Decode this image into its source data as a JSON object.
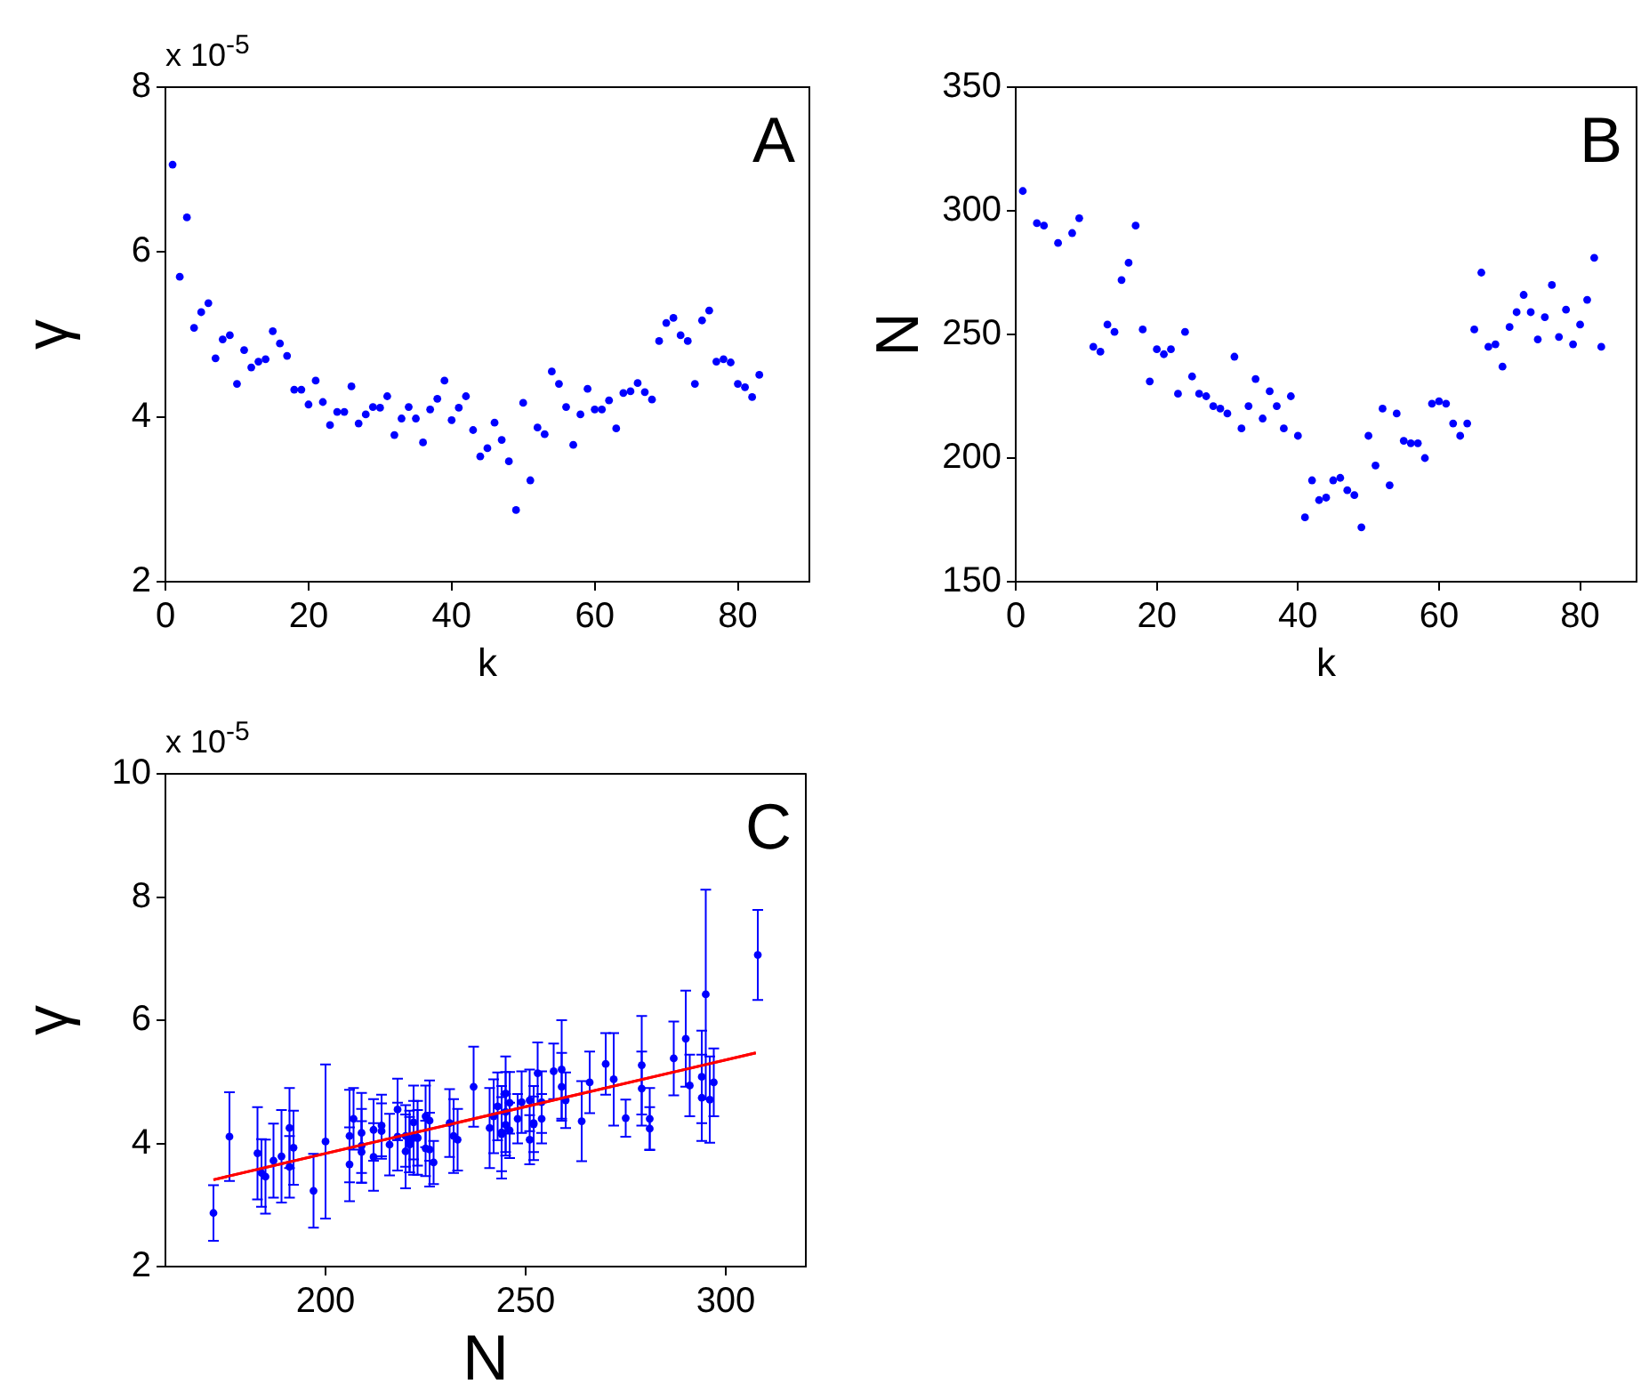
{
  "chart_data": [
    {
      "type": "scatter",
      "xlabel": "k",
      "ylabel": "γ",
      "annotations": [
        "A",
        "x 10$^{-5}$"
      ],
      "marker": "circle",
      "color": "#0000ff",
      "x": [
        1,
        2,
        3,
        4,
        5,
        6,
        7,
        8,
        9,
        10,
        11,
        12,
        13,
        14,
        15,
        16,
        17,
        18,
        19,
        20,
        21,
        22,
        23,
        24,
        25,
        26,
        27,
        28,
        29,
        30,
        31,
        32,
        33,
        34,
        35,
        36,
        37,
        38,
        39,
        40,
        41,
        42,
        43,
        44,
        45,
        46,
        47,
        48,
        49,
        50,
        51,
        52,
        53,
        54,
        55,
        56,
        57,
        58,
        59,
        60,
        61,
        62,
        63,
        64,
        65,
        66,
        67,
        68,
        69,
        70,
        71,
        72,
        73,
        74,
        75,
        76,
        77,
        78,
        79,
        80,
        81,
        82,
        83
      ],
      "values": [
        7.06,
        5.7,
        6.42,
        5.08,
        5.27,
        5.38,
        4.71,
        4.94,
        4.99,
        4.4,
        4.81,
        4.6,
        4.67,
        4.7,
        5.04,
        4.89,
        4.74,
        4.33,
        4.33,
        4.15,
        4.44,
        4.18,
        3.9,
        4.06,
        4.06,
        4.37,
        3.92,
        4.03,
        4.12,
        4.11,
        4.25,
        3.78,
        3.98,
        4.12,
        3.98,
        3.69,
        4.09,
        4.22,
        4.44,
        3.96,
        4.11,
        4.25,
        3.84,
        3.52,
        3.62,
        3.93,
        3.72,
        3.46,
        2.87,
        4.17,
        3.23,
        3.87,
        3.79,
        4.55,
        4.4,
        4.12,
        3.66,
        4.03,
        4.34,
        4.09,
        4.09,
        4.2,
        3.86,
        4.29,
        4.31,
        4.41,
        4.3,
        4.21,
        4.92,
        5.14,
        5.2,
        4.99,
        4.92,
        4.4,
        5.17,
        5.29,
        4.67,
        4.7,
        4.66,
        4.4,
        4.36,
        4.24,
        4.51
      ],
      "xlim": [
        0,
        90
      ],
      "xticks": [
        0,
        20,
        40,
        60,
        80
      ],
      "ylim": [
        2,
        8
      ],
      "yticks": [
        2,
        4,
        6,
        8
      ]
    },
    {
      "type": "scatter",
      "xlabel": "k",
      "ylabel": "N",
      "annotations": [
        "B"
      ],
      "marker": "circle",
      "color": "#0000ff",
      "x": [
        1,
        2,
        3,
        4,
        5,
        6,
        7,
        8,
        9,
        10,
        11,
        12,
        13,
        14,
        15,
        16,
        17,
        18,
        19,
        20,
        21,
        22,
        23,
        24,
        25,
        26,
        27,
        28,
        29,
        30,
        31,
        32,
        33,
        34,
        35,
        36,
        37,
        38,
        39,
        40,
        41,
        42,
        43,
        44,
        45,
        46,
        47,
        48,
        49,
        50,
        51,
        52,
        53,
        54,
        55,
        56,
        57,
        58,
        59,
        60,
        61,
        62,
        63,
        64,
        65,
        66,
        67,
        68,
        69,
        70,
        71,
        72,
        73,
        74,
        75,
        76,
        77,
        78,
        79,
        80,
        81,
        82,
        83
      ],
      "values": [
        308,
        null,
        295,
        294,
        null,
        287,
        null,
        291,
        297,
        null,
        245,
        243,
        254,
        251,
        272,
        279,
        294,
        252,
        231,
        244,
        242,
        244,
        226,
        251,
        233,
        226,
        225,
        221,
        220,
        218,
        241,
        212,
        221,
        232,
        216,
        227,
        221,
        212,
        225,
        209,
        176,
        191,
        183,
        184,
        191,
        192,
        187,
        185,
        172,
        209,
        197,
        220,
        189,
        218,
        207,
        206,
        206,
        200,
        222,
        223,
        222,
        214,
        209,
        214,
        252,
        275,
        245,
        246,
        237,
        253,
        259,
        266,
        259,
        248,
        257,
        270,
        249,
        260,
        246,
        254,
        264,
        281,
        245
      ],
      "xlim": [
        0,
        88
      ],
      "xticks": [
        0,
        20,
        40,
        60,
        80
      ],
      "ylim": [
        150,
        350
      ],
      "yticks": [
        150,
        200,
        250,
        300,
        350
      ]
    },
    {
      "type": "scatter",
      "xlabel": "N",
      "ylabel": "γ",
      "annotations": [
        "C",
        "x 10$^{-5}$"
      ],
      "marker": "circle",
      "series": [
        {
          "type": "scatter",
          "color": "#0000ff",
          "x": [
            308,
            290,
            295,
            294,
            279,
            287,
            296,
            291,
            297,
            281,
            245,
            243,
            254,
            251,
            272,
            279,
            294,
            252,
            231,
            244,
            242,
            244,
            226,
            251,
            233,
            226,
            225,
            221,
            220,
            218,
            241,
            212,
            221,
            232,
            216,
            227,
            223,
            212,
            225,
            209,
            176,
            191,
            183,
            184,
            191,
            192,
            187,
            185,
            172,
            209,
            197,
            220,
            189,
            218,
            207,
            206,
            206,
            200,
            222,
            223,
            222,
            214,
            209,
            214,
            252,
            275,
            245,
            246,
            237,
            253,
            259,
            266,
            259,
            248,
            257,
            270,
            249,
            260,
            246,
            254,
            264,
            281,
            245
          ],
          "values": [
            7.06,
            5.7,
            6.42,
            5.08,
            5.27,
            5.38,
            4.71,
            4.94,
            4.99,
            4.4,
            4.81,
            4.6,
            4.67,
            4.7,
            5.04,
            4.89,
            4.74,
            4.33,
            4.33,
            4.15,
            4.44,
            4.18,
            3.9,
            4.06,
            4.06,
            4.37,
            3.92,
            4.03,
            4.12,
            4.11,
            4.25,
            3.78,
            3.98,
            4.12,
            3.98,
            3.69,
            4.09,
            4.22,
            4.44,
            3.96,
            4.11,
            4.25,
            3.84,
            3.52,
            3.62,
            3.93,
            3.72,
            3.46,
            2.87,
            4.17,
            3.23,
            3.87,
            3.79,
            4.55,
            4.4,
            4.12,
            3.66,
            4.03,
            4.34,
            4.09,
            4.09,
            4.2,
            3.86,
            4.29,
            4.31,
            4.41,
            4.3,
            4.21,
            4.92,
            5.14,
            5.2,
            4.99,
            4.92,
            4.4,
            5.17,
            5.29,
            4.67,
            4.7,
            4.66,
            4.4,
            4.36,
            4.24,
            4.51
          ],
          "errors": [
            0.73,
            0.78,
            1.7,
            0.75,
            0.8,
            0.6,
            0.7,
            0.5,
            0.55,
            0.5,
            0.6,
            0.55,
            0.5,
            0.5,
            0.75,
            0.6,
            0.7,
            0.6,
            0.55,
            0.6,
            0.6,
            0.75,
            0.6,
            0.4,
            0.5,
            0.65,
            0.45,
            0.5,
            0.5,
            0.55,
            0.65,
            0.55,
            0.45,
            0.6,
            0.5,
            0.35,
            0.45,
            0.5,
            0.5,
            0.6,
            0.72,
            0.65,
            0.75,
            0.55,
            0.5,
            0.6,
            0.6,
            0.6,
            0.45,
            0.65,
            0.6,
            0.6,
            0.75,
            0.5,
            0.5,
            0.75,
            0.6,
            1.25,
            0.6,
            0.6,
            0.6,
            0.45,
            0.5,
            0.5,
            0.45,
            0.3,
            0.5,
            0.45,
            0.65,
            0.5,
            0.8,
            0.5,
            0.55,
            0.4,
            0.45,
            0.5,
            0.5,
            0.45,
            0.5,
            0.4,
            0.65,
            0.35,
            0.65
          ]
        },
        {
          "type": "line",
          "marker": "none",
          "color": "#ff0000",
          "x": [
            172,
            307.5
          ],
          "values": [
            3.41,
            5.47
          ]
        }
      ],
      "xlim": [
        160,
        320
      ],
      "xticks": [
        200,
        250,
        300
      ],
      "ylim": [
        2,
        10
      ],
      "yticks": [
        2,
        4,
        6,
        8,
        10
      ]
    }
  ]
}
